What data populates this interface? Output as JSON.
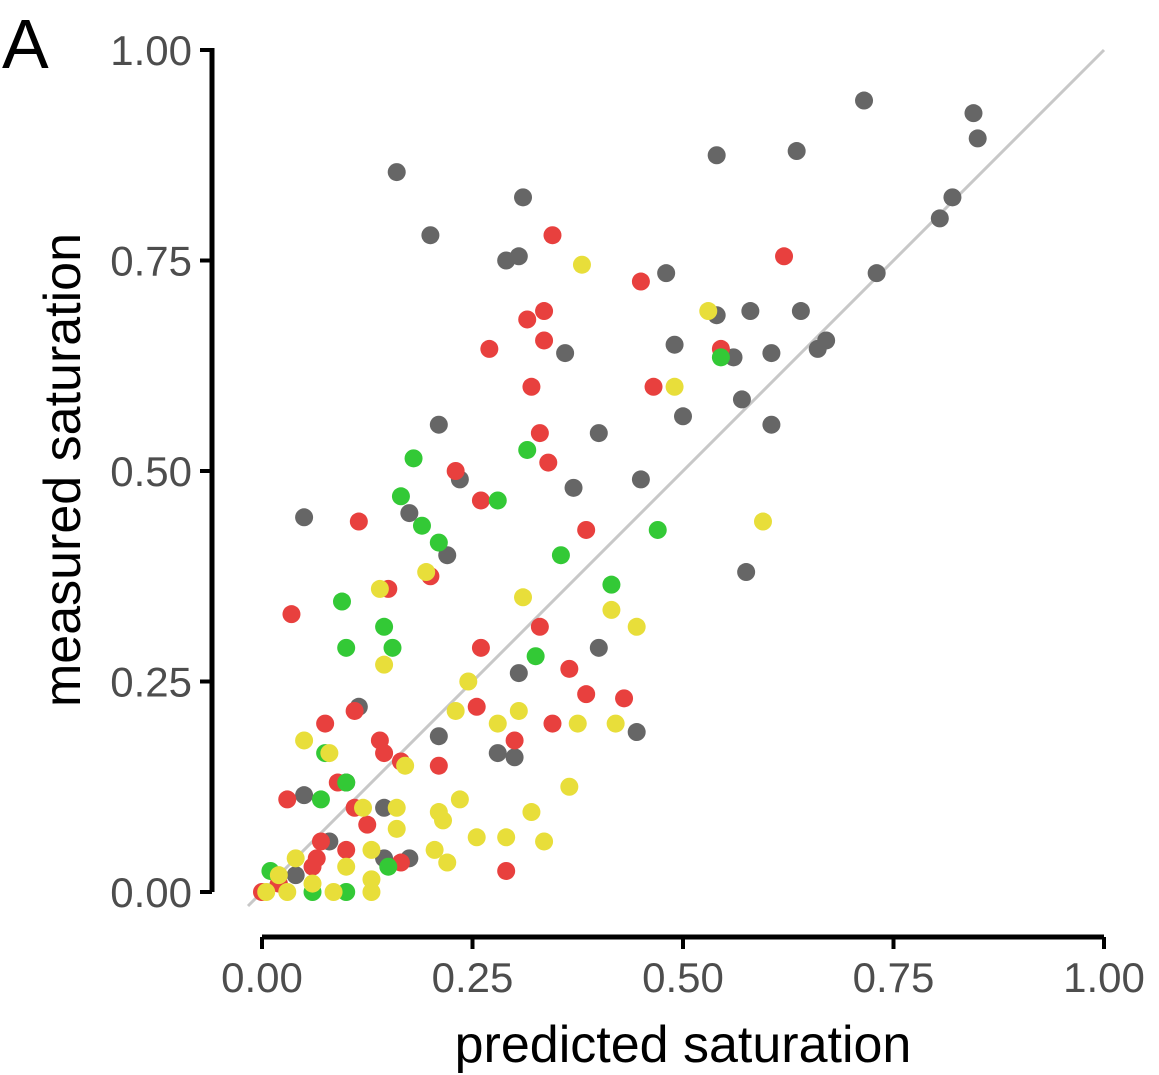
{
  "panel_label": "A",
  "chart_data": {
    "type": "scatter",
    "xlabel": "predicted saturation",
    "ylabel": "measured saturation",
    "xlim": [
      0,
      1
    ],
    "ylim": [
      0,
      1
    ],
    "x_ticks": [
      "0.00",
      "0.25",
      "0.50",
      "0.75",
      "1.00"
    ],
    "y_ticks": [
      "0.00",
      "0.25",
      "0.50",
      "0.75",
      "1.00"
    ],
    "x_tick_values": [
      0,
      0.25,
      0.5,
      0.75,
      1
    ],
    "y_tick_values": [
      0,
      0.25,
      0.5,
      0.75,
      1
    ],
    "grid": false,
    "legend": "none",
    "reference_line": {
      "from": [
        0,
        0
      ],
      "to": [
        1,
        1
      ],
      "color": "#c8c8c8"
    },
    "series": [
      {
        "color": "#666666",
        "points": [
          [
            0.16,
            0.855
          ],
          [
            0.31,
            0.825
          ],
          [
            0.2,
            0.78
          ],
          [
            0.29,
            0.75
          ],
          [
            0.305,
            0.755
          ],
          [
            0.54,
            0.875
          ],
          [
            0.635,
            0.88
          ],
          [
            0.715,
            0.94
          ],
          [
            0.845,
            0.925
          ],
          [
            0.85,
            0.895
          ],
          [
            0.82,
            0.825
          ],
          [
            0.805,
            0.8
          ],
          [
            0.73,
            0.735
          ],
          [
            0.48,
            0.735
          ],
          [
            0.54,
            0.685
          ],
          [
            0.58,
            0.69
          ],
          [
            0.64,
            0.69
          ],
          [
            0.49,
            0.65
          ],
          [
            0.56,
            0.635
          ],
          [
            0.605,
            0.64
          ],
          [
            0.67,
            0.655
          ],
          [
            0.66,
            0.645
          ],
          [
            0.36,
            0.64
          ],
          [
            0.57,
            0.585
          ],
          [
            0.5,
            0.565
          ],
          [
            0.605,
            0.555
          ],
          [
            0.21,
            0.555
          ],
          [
            0.4,
            0.545
          ],
          [
            0.45,
            0.49
          ],
          [
            0.37,
            0.48
          ],
          [
            0.235,
            0.49
          ],
          [
            0.05,
            0.445
          ],
          [
            0.175,
            0.45
          ],
          [
            0.22,
            0.4
          ],
          [
            0.575,
            0.38
          ],
          [
            0.4,
            0.29
          ],
          [
            0.305,
            0.26
          ],
          [
            0.445,
            0.19
          ],
          [
            0.21,
            0.185
          ],
          [
            0.28,
            0.165
          ],
          [
            0.3,
            0.16
          ],
          [
            0.115,
            0.22
          ],
          [
            0.145,
            0.1
          ],
          [
            0.175,
            0.04
          ],
          [
            0.08,
            0.06
          ],
          [
            0.05,
            0.115
          ],
          [
            0.145,
            0.04
          ],
          [
            0.04,
            0.02
          ],
          [
            0.1,
            0.13
          ]
        ]
      },
      {
        "color": "#e8403e",
        "points": [
          [
            0.345,
            0.78
          ],
          [
            0.62,
            0.755
          ],
          [
            0.45,
            0.725
          ],
          [
            0.335,
            0.69
          ],
          [
            0.315,
            0.68
          ],
          [
            0.27,
            0.645
          ],
          [
            0.335,
            0.655
          ],
          [
            0.545,
            0.645
          ],
          [
            0.465,
            0.6
          ],
          [
            0.32,
            0.6
          ],
          [
            0.33,
            0.545
          ],
          [
            0.34,
            0.51
          ],
          [
            0.23,
            0.5
          ],
          [
            0.26,
            0.465
          ],
          [
            0.115,
            0.44
          ],
          [
            0.385,
            0.43
          ],
          [
            0.2,
            0.375
          ],
          [
            0.15,
            0.36
          ],
          [
            0.035,
            0.33
          ],
          [
            0.33,
            0.315
          ],
          [
            0.26,
            0.29
          ],
          [
            0.365,
            0.265
          ],
          [
            0.385,
            0.235
          ],
          [
            0.43,
            0.23
          ],
          [
            0.255,
            0.22
          ],
          [
            0.11,
            0.215
          ],
          [
            0.075,
            0.2
          ],
          [
            0.345,
            0.2
          ],
          [
            0.14,
            0.18
          ],
          [
            0.145,
            0.165
          ],
          [
            0.3,
            0.18
          ],
          [
            0.21,
            0.15
          ],
          [
            0.165,
            0.155
          ],
          [
            0.09,
            0.13
          ],
          [
            0.03,
            0.11
          ],
          [
            0.125,
            0.08
          ],
          [
            0.11,
            0.1
          ],
          [
            0.07,
            0.06
          ],
          [
            0.065,
            0.04
          ],
          [
            0.06,
            0.03
          ],
          [
            0.02,
            0.01
          ],
          [
            0.0,
            0.0
          ],
          [
            0.29,
            0.025
          ],
          [
            0.1,
            0.05
          ],
          [
            0.165,
            0.035
          ]
        ]
      },
      {
        "color": "#33c936",
        "points": [
          [
            0.545,
            0.635
          ],
          [
            0.315,
            0.525
          ],
          [
            0.18,
            0.515
          ],
          [
            0.165,
            0.47
          ],
          [
            0.28,
            0.465
          ],
          [
            0.19,
            0.435
          ],
          [
            0.21,
            0.415
          ],
          [
            0.47,
            0.43
          ],
          [
            0.355,
            0.4
          ],
          [
            0.095,
            0.345
          ],
          [
            0.415,
            0.365
          ],
          [
            0.145,
            0.315
          ],
          [
            0.1,
            0.29
          ],
          [
            0.155,
            0.29
          ],
          [
            0.325,
            0.28
          ],
          [
            0.075,
            0.165
          ],
          [
            0.1,
            0.13
          ],
          [
            0.07,
            0.11
          ],
          [
            0.01,
            0.025
          ],
          [
            0.06,
            0.0
          ],
          [
            0.1,
            0.0
          ],
          [
            0.15,
            0.03
          ]
        ]
      },
      {
        "color": "#e8de3a",
        "points": [
          [
            0.38,
            0.745
          ],
          [
            0.53,
            0.69
          ],
          [
            0.49,
            0.6
          ],
          [
            0.595,
            0.44
          ],
          [
            0.195,
            0.38
          ],
          [
            0.14,
            0.36
          ],
          [
            0.31,
            0.35
          ],
          [
            0.415,
            0.335
          ],
          [
            0.445,
            0.315
          ],
          [
            0.145,
            0.27
          ],
          [
            0.245,
            0.25
          ],
          [
            0.05,
            0.18
          ],
          [
            0.28,
            0.2
          ],
          [
            0.305,
            0.215
          ],
          [
            0.23,
            0.215
          ],
          [
            0.375,
            0.2
          ],
          [
            0.42,
            0.2
          ],
          [
            0.08,
            0.165
          ],
          [
            0.17,
            0.15
          ],
          [
            0.365,
            0.125
          ],
          [
            0.235,
            0.11
          ],
          [
            0.21,
            0.095
          ],
          [
            0.12,
            0.1
          ],
          [
            0.16,
            0.1
          ],
          [
            0.215,
            0.085
          ],
          [
            0.32,
            0.095
          ],
          [
            0.16,
            0.075
          ],
          [
            0.255,
            0.065
          ],
          [
            0.29,
            0.065
          ],
          [
            0.335,
            0.06
          ],
          [
            0.13,
            0.05
          ],
          [
            0.205,
            0.05
          ],
          [
            0.22,
            0.035
          ],
          [
            0.1,
            0.03
          ],
          [
            0.04,
            0.04
          ],
          [
            0.02,
            0.02
          ],
          [
            0.005,
            0.0
          ],
          [
            0.03,
            0.0
          ],
          [
            0.085,
            0.0
          ],
          [
            0.13,
            0.0
          ],
          [
            0.13,
            0.015
          ],
          [
            0.06,
            0.01
          ]
        ]
      }
    ]
  }
}
